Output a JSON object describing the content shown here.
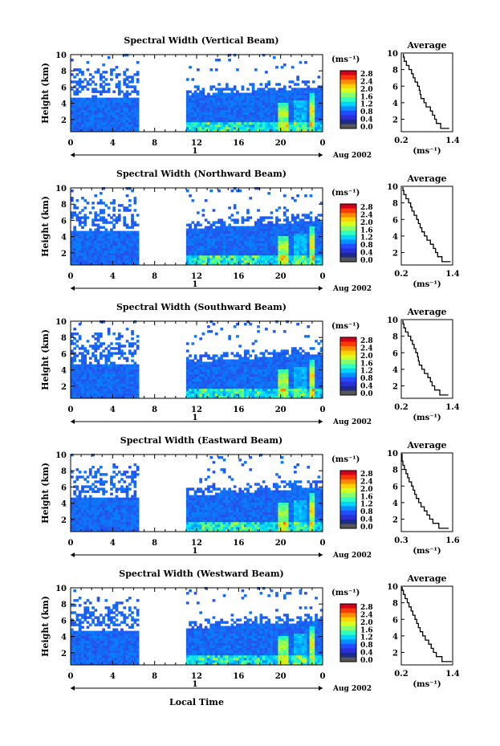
{
  "figure": {
    "date_label": "Aug 2002",
    "date_tick": "1",
    "xlabel": "Local Time",
    "avg_title": "Average",
    "avg_xlabel": "(ms⁻¹)",
    "cb_units": "(ms⁻¹)",
    "colorbar_ticks": [
      "2.8",
      "2.4",
      "2.0",
      "1.6",
      "1.2",
      "0.8",
      "0.4",
      "0.0"
    ],
    "colorbar_colors": [
      "#d4001a",
      "#ff3a00",
      "#ff8a00",
      "#ffd200",
      "#d7ff1e",
      "#86ff6e",
      "#2fffc0",
      "#00d5ff",
      "#0091ff",
      "#1f4dff",
      "#2a2fd6",
      "#1d2a8a",
      "#555555"
    ]
  },
  "chart_data": [
    {
      "type": "heatmap",
      "title": "Spectral Width (Vertical Beam)",
      "ylabel": "Height (km)",
      "xlabel": "Local Time",
      "x_ticks": [
        "0",
        "4",
        "8",
        "12",
        "16",
        "20",
        "0"
      ],
      "y_ticks": [
        "2",
        "4",
        "6",
        "8",
        "10"
      ],
      "xlim": [
        0,
        24
      ],
      "ylim": [
        0.5,
        10
      ],
      "data_gap_hours": [
        6.4,
        10.8
      ],
      "colorbar": {
        "units": "(ms⁻¹)",
        "ticks": [
          "2.8",
          "2.4",
          "2.0",
          "1.6",
          "1.2",
          "0.8",
          "0.4",
          "0.0"
        ],
        "range": [
          0,
          3.0
        ]
      },
      "average_profile": {
        "title": "Average",
        "xlabel": "(ms⁻¹)",
        "x_ticks": [
          "0.2",
          "1.4"
        ],
        "y_ticks": [
          "2",
          "4",
          "6",
          "8",
          "10"
        ],
        "xlim": [
          0.2,
          1.4
        ],
        "ylim": [
          0.5,
          10
        ],
        "height_km": [
          0.9,
          1.5,
          2.0,
          2.5,
          3.0,
          3.5,
          4.0,
          4.5,
          5.0,
          5.5,
          6.0,
          6.5,
          7.0,
          7.5,
          8.0,
          8.5,
          9.0,
          9.5,
          9.9
        ],
        "width_ms": [
          1.32,
          1.12,
          1.02,
          0.98,
          0.93,
          0.88,
          0.78,
          0.73,
          0.66,
          0.64,
          0.62,
          0.58,
          0.52,
          0.48,
          0.44,
          0.38,
          0.32,
          0.27,
          0.25
        ]
      }
    },
    {
      "type": "heatmap",
      "title": "Spectral Width (Northward Beam)",
      "ylabel": "Height (km)",
      "xlabel": "Local Time",
      "x_ticks": [
        "0",
        "4",
        "8",
        "12",
        "16",
        "20",
        "0"
      ],
      "y_ticks": [
        "2",
        "4",
        "6",
        "8",
        "10"
      ],
      "xlim": [
        0,
        24
      ],
      "ylim": [
        0.5,
        10
      ],
      "data_gap_hours": [
        6.4,
        10.8
      ],
      "colorbar": {
        "units": "(ms⁻¹)",
        "ticks": [
          "2.8",
          "2.4",
          "2.0",
          "1.6",
          "1.2",
          "0.8",
          "0.4",
          "0.0"
        ],
        "range": [
          0,
          3.0
        ]
      },
      "average_profile": {
        "title": "Average",
        "xlabel": "(ms⁻¹)",
        "x_ticks": [
          "0.2",
          "1.4"
        ],
        "y_ticks": [
          "2",
          "4",
          "6",
          "8",
          "10"
        ],
        "xlim": [
          0.2,
          1.4
        ],
        "ylim": [
          0.5,
          10
        ],
        "height_km": [
          0.9,
          1.5,
          2.0,
          2.5,
          3.0,
          3.5,
          4.0,
          4.5,
          5.0,
          5.5,
          6.0,
          6.5,
          7.0,
          7.5,
          8.0,
          8.5,
          9.0,
          9.5,
          9.9
        ],
        "width_ms": [
          1.35,
          1.15,
          1.05,
          1.0,
          0.95,
          0.88,
          0.8,
          0.74,
          0.68,
          0.64,
          0.6,
          0.56,
          0.5,
          0.45,
          0.42,
          0.37,
          0.31,
          0.26,
          0.24
        ]
      }
    },
    {
      "type": "heatmap",
      "title": "Spectral Width (Southward Beam)",
      "ylabel": "Height (km)",
      "xlabel": "Local Time",
      "x_ticks": [
        "0",
        "4",
        "8",
        "12",
        "16",
        "20",
        "0"
      ],
      "y_ticks": [
        "2",
        "4",
        "6",
        "8",
        "10"
      ],
      "xlim": [
        0,
        24
      ],
      "ylim": [
        0.5,
        10
      ],
      "data_gap_hours": [
        6.4,
        10.8
      ],
      "colorbar": {
        "units": "(ms⁻¹)",
        "ticks": [
          "2.8",
          "2.4",
          "2.0",
          "1.6",
          "1.2",
          "0.8",
          "0.4",
          "0.0"
        ],
        "range": [
          0,
          3.0
        ]
      },
      "average_profile": {
        "title": "Average",
        "xlabel": "(ms⁻¹)",
        "x_ticks": [
          "0.2",
          "1.4"
        ],
        "y_ticks": [
          "2",
          "4",
          "6",
          "8",
          "10"
        ],
        "xlim": [
          0.2,
          1.4
        ],
        "ylim": [
          0.5,
          10
        ],
        "height_km": [
          0.9,
          1.5,
          2.0,
          2.5,
          3.0,
          3.5,
          4.0,
          4.5,
          5.0,
          5.5,
          6.0,
          6.5,
          7.0,
          7.5,
          8.0,
          8.5,
          9.0,
          9.5,
          9.9
        ],
        "width_ms": [
          1.3,
          1.1,
          0.98,
          0.92,
          0.88,
          0.82,
          0.74,
          0.68,
          0.62,
          0.6,
          0.58,
          0.54,
          0.5,
          0.46,
          0.42,
          0.36,
          0.3,
          0.26,
          0.24
        ]
      }
    },
    {
      "type": "heatmap",
      "title": "Spectral Width (Eastward Beam)",
      "ylabel": "Height (km)",
      "xlabel": "Local Time",
      "x_ticks": [
        "0",
        "4",
        "8",
        "12",
        "16",
        "20",
        "0"
      ],
      "y_ticks": [
        "2",
        "4",
        "6",
        "8",
        "10"
      ],
      "xlim": [
        0,
        24
      ],
      "ylim": [
        0.5,
        10
      ],
      "data_gap_hours": [
        6.4,
        10.8
      ],
      "colorbar": {
        "units": "(ms⁻¹)",
        "ticks": [
          "2.8",
          "2.4",
          "2.0",
          "1.6",
          "1.2",
          "0.8",
          "0.4",
          "0.0"
        ],
        "range": [
          0,
          3.0
        ]
      },
      "average_profile": {
        "title": "Average",
        "xlabel": "(ms⁻¹)",
        "x_ticks": [
          "0.3",
          "1.6"
        ],
        "y_ticks": [
          "2",
          "4",
          "6",
          "8",
          "10"
        ],
        "xlim": [
          0.3,
          1.6
        ],
        "ylim": [
          0.5,
          10
        ],
        "height_km": [
          0.9,
          1.5,
          2.0,
          2.5,
          3.0,
          3.5,
          4.0,
          4.5,
          5.0,
          5.5,
          6.0,
          6.5,
          7.0,
          7.5,
          8.0,
          8.5,
          9.0,
          9.5,
          9.9
        ],
        "width_ms": [
          1.5,
          1.25,
          1.1,
          1.02,
          0.95,
          0.88,
          0.8,
          0.74,
          0.68,
          0.64,
          0.6,
          0.56,
          0.5,
          0.46,
          0.42,
          0.38,
          0.34,
          0.32,
          0.32
        ]
      }
    },
    {
      "type": "heatmap",
      "title": "Spectral Width (Westward Beam)",
      "ylabel": "Height (km)",
      "xlabel": "Local Time",
      "x_ticks": [
        "0",
        "4",
        "8",
        "12",
        "16",
        "20",
        "0"
      ],
      "y_ticks": [
        "2",
        "4",
        "6",
        "8",
        "10"
      ],
      "xlim": [
        0,
        24
      ],
      "ylim": [
        0.5,
        10
      ],
      "data_gap_hours": [
        6.4,
        10.8
      ],
      "colorbar": {
        "units": "(ms⁻¹)",
        "ticks": [
          "2.8",
          "2.4",
          "2.0",
          "1.6",
          "1.2",
          "0.8",
          "0.4",
          "0.0"
        ],
        "range": [
          0,
          3.0
        ]
      },
      "average_profile": {
        "title": "Average",
        "xlabel": "(ms⁻¹)",
        "x_ticks": [
          "0.2",
          "1.4"
        ],
        "y_ticks": [
          "2",
          "4",
          "6",
          "8",
          "10"
        ],
        "xlim": [
          0.2,
          1.4
        ],
        "ylim": [
          0.5,
          10
        ],
        "height_km": [
          0.9,
          1.5,
          2.0,
          2.5,
          3.0,
          3.5,
          4.0,
          4.5,
          5.0,
          5.5,
          6.0,
          6.5,
          7.0,
          7.5,
          8.0,
          8.5,
          9.0,
          9.5,
          9.9
        ],
        "width_ms": [
          1.38,
          1.15,
          1.02,
          0.95,
          0.9,
          0.84,
          0.76,
          0.7,
          0.64,
          0.6,
          0.56,
          0.52,
          0.47,
          0.43,
          0.38,
          0.34,
          0.29,
          0.25,
          0.22
        ]
      }
    }
  ]
}
